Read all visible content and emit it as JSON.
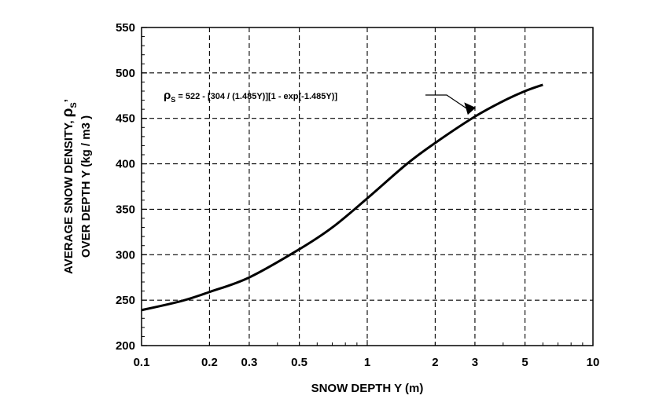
{
  "chart_data": {
    "type": "line",
    "x_scale": "log",
    "xlabel": "SNOW DEPTH  Y  (m)",
    "ylabel_line1": "AVERAGE  SNOW  DENSITY,",
    "ylabel_rho": "ρ",
    "ylabel_sub": "S",
    "ylabel_comma": "’",
    "ylabel_line2": "OVER DEPTH  Y  (kg / m3 )",
    "xlim": [
      0.1,
      10
    ],
    "ylim": [
      200,
      550
    ],
    "x_ticks": [
      {
        "v": 0.1,
        "label": "0.1"
      },
      {
        "v": 0.2,
        "label": "0.2"
      },
      {
        "v": 0.3,
        "label": "0.3"
      },
      {
        "v": 0.5,
        "label": "0.5"
      },
      {
        "v": 1,
        "label": "1"
      },
      {
        "v": 2,
        "label": "2"
      },
      {
        "v": 3,
        "label": "3"
      },
      {
        "v": 5,
        "label": "5"
      },
      {
        "v": 10,
        "label": "10"
      }
    ],
    "y_ticks": [
      {
        "v": 200,
        "label": "200"
      },
      {
        "v": 250,
        "label": "250"
      },
      {
        "v": 300,
        "label": "300"
      },
      {
        "v": 350,
        "label": "350"
      },
      {
        "v": 400,
        "label": "400"
      },
      {
        "v": 450,
        "label": "450"
      },
      {
        "v": 500,
        "label": "500"
      },
      {
        "v": 550,
        "label": "550"
      }
    ],
    "grid": true,
    "grid_style": "dashed",
    "series": [
      {
        "x": [
          0.1,
          0.15,
          0.2,
          0.3,
          0.5,
          0.7,
          1.0,
          1.5,
          2.0,
          3.0,
          4.0,
          5.0,
          6.0
        ],
        "y": [
          239,
          249,
          259,
          275,
          306,
          330,
          362,
          400,
          423,
          452,
          469,
          480,
          487
        ]
      }
    ],
    "annotation": {
      "rho": "ρ",
      "sub": "S",
      "text": " =  522 - [304 / (1.485Y)][1 - exp(-1.485Y)]",
      "arrow_target": {
        "x": 2.75,
        "y": 453
      }
    }
  }
}
